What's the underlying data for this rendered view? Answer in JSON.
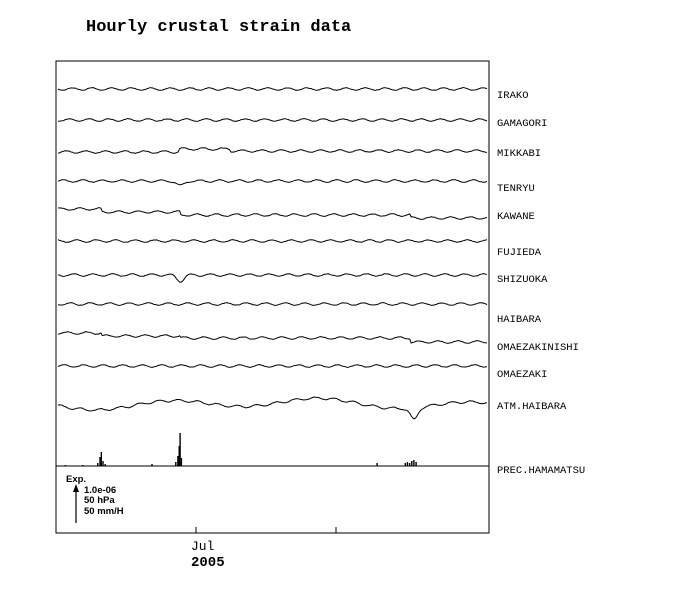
{
  "chart_data": {
    "type": "line",
    "title": "Hourly crustal strain data",
    "x_tick_label": "Jul",
    "x_year_label": "2005",
    "scale_box": {
      "label": "Exp.",
      "lines": [
        "1.0e-06",
        "50 hPa",
        "50 mm/H"
      ]
    },
    "series": [
      {
        "name": "IRAKO",
        "steps": [],
        "dips": []
      },
      {
        "name": "GAMAGORI",
        "steps": [],
        "dips": []
      },
      {
        "name": "MIKKABI",
        "steps": [
          [
            0.28,
            -3
          ],
          [
            0.4,
            2
          ]
        ],
        "dips": []
      },
      {
        "name": "TENRYU",
        "steps": [],
        "dips": [
          [
            0.285,
            5
          ]
        ]
      },
      {
        "name": "KAWANE",
        "steps": [
          [
            0.1,
            3
          ],
          [
            0.285,
            3
          ],
          [
            0.82,
            3
          ]
        ],
        "dips": []
      },
      {
        "name": "FUJIEDA",
        "steps": [],
        "dips": []
      },
      {
        "name": "SHIZUOKA",
        "steps": [],
        "dips": [
          [
            0.285,
            6
          ]
        ]
      },
      {
        "name": "HAIBARA",
        "steps": [],
        "dips": []
      },
      {
        "name": "OMAEZAKINISHI",
        "steps": [
          [
            0.1,
            3
          ],
          [
            0.285,
            2
          ],
          [
            0.82,
            4
          ]
        ],
        "dips": []
      },
      {
        "name": "OMAEZAKI",
        "steps": [],
        "dips": []
      },
      {
        "name": "ATM.HAIBARA",
        "steps": [],
        "dips": [
          [
            0.83,
            12
          ]
        ]
      },
      {
        "name": "PREC.HAMAMATSU",
        "bars": [
          [
            0.02,
            1
          ],
          [
            0.06,
            1
          ],
          [
            0.095,
            3
          ],
          [
            0.1,
            9
          ],
          [
            0.103,
            14
          ],
          [
            0.107,
            5
          ],
          [
            0.112,
            2
          ],
          [
            0.22,
            2
          ],
          [
            0.275,
            4
          ],
          [
            0.28,
            10
          ],
          [
            0.283,
            20
          ],
          [
            0.285,
            33
          ],
          [
            0.288,
            8
          ],
          [
            0.74,
            3
          ],
          [
            0.805,
            3
          ],
          [
            0.81,
            4
          ],
          [
            0.815,
            3
          ],
          [
            0.82,
            5
          ],
          [
            0.825,
            6
          ],
          [
            0.83,
            4
          ]
        ]
      }
    ]
  }
}
